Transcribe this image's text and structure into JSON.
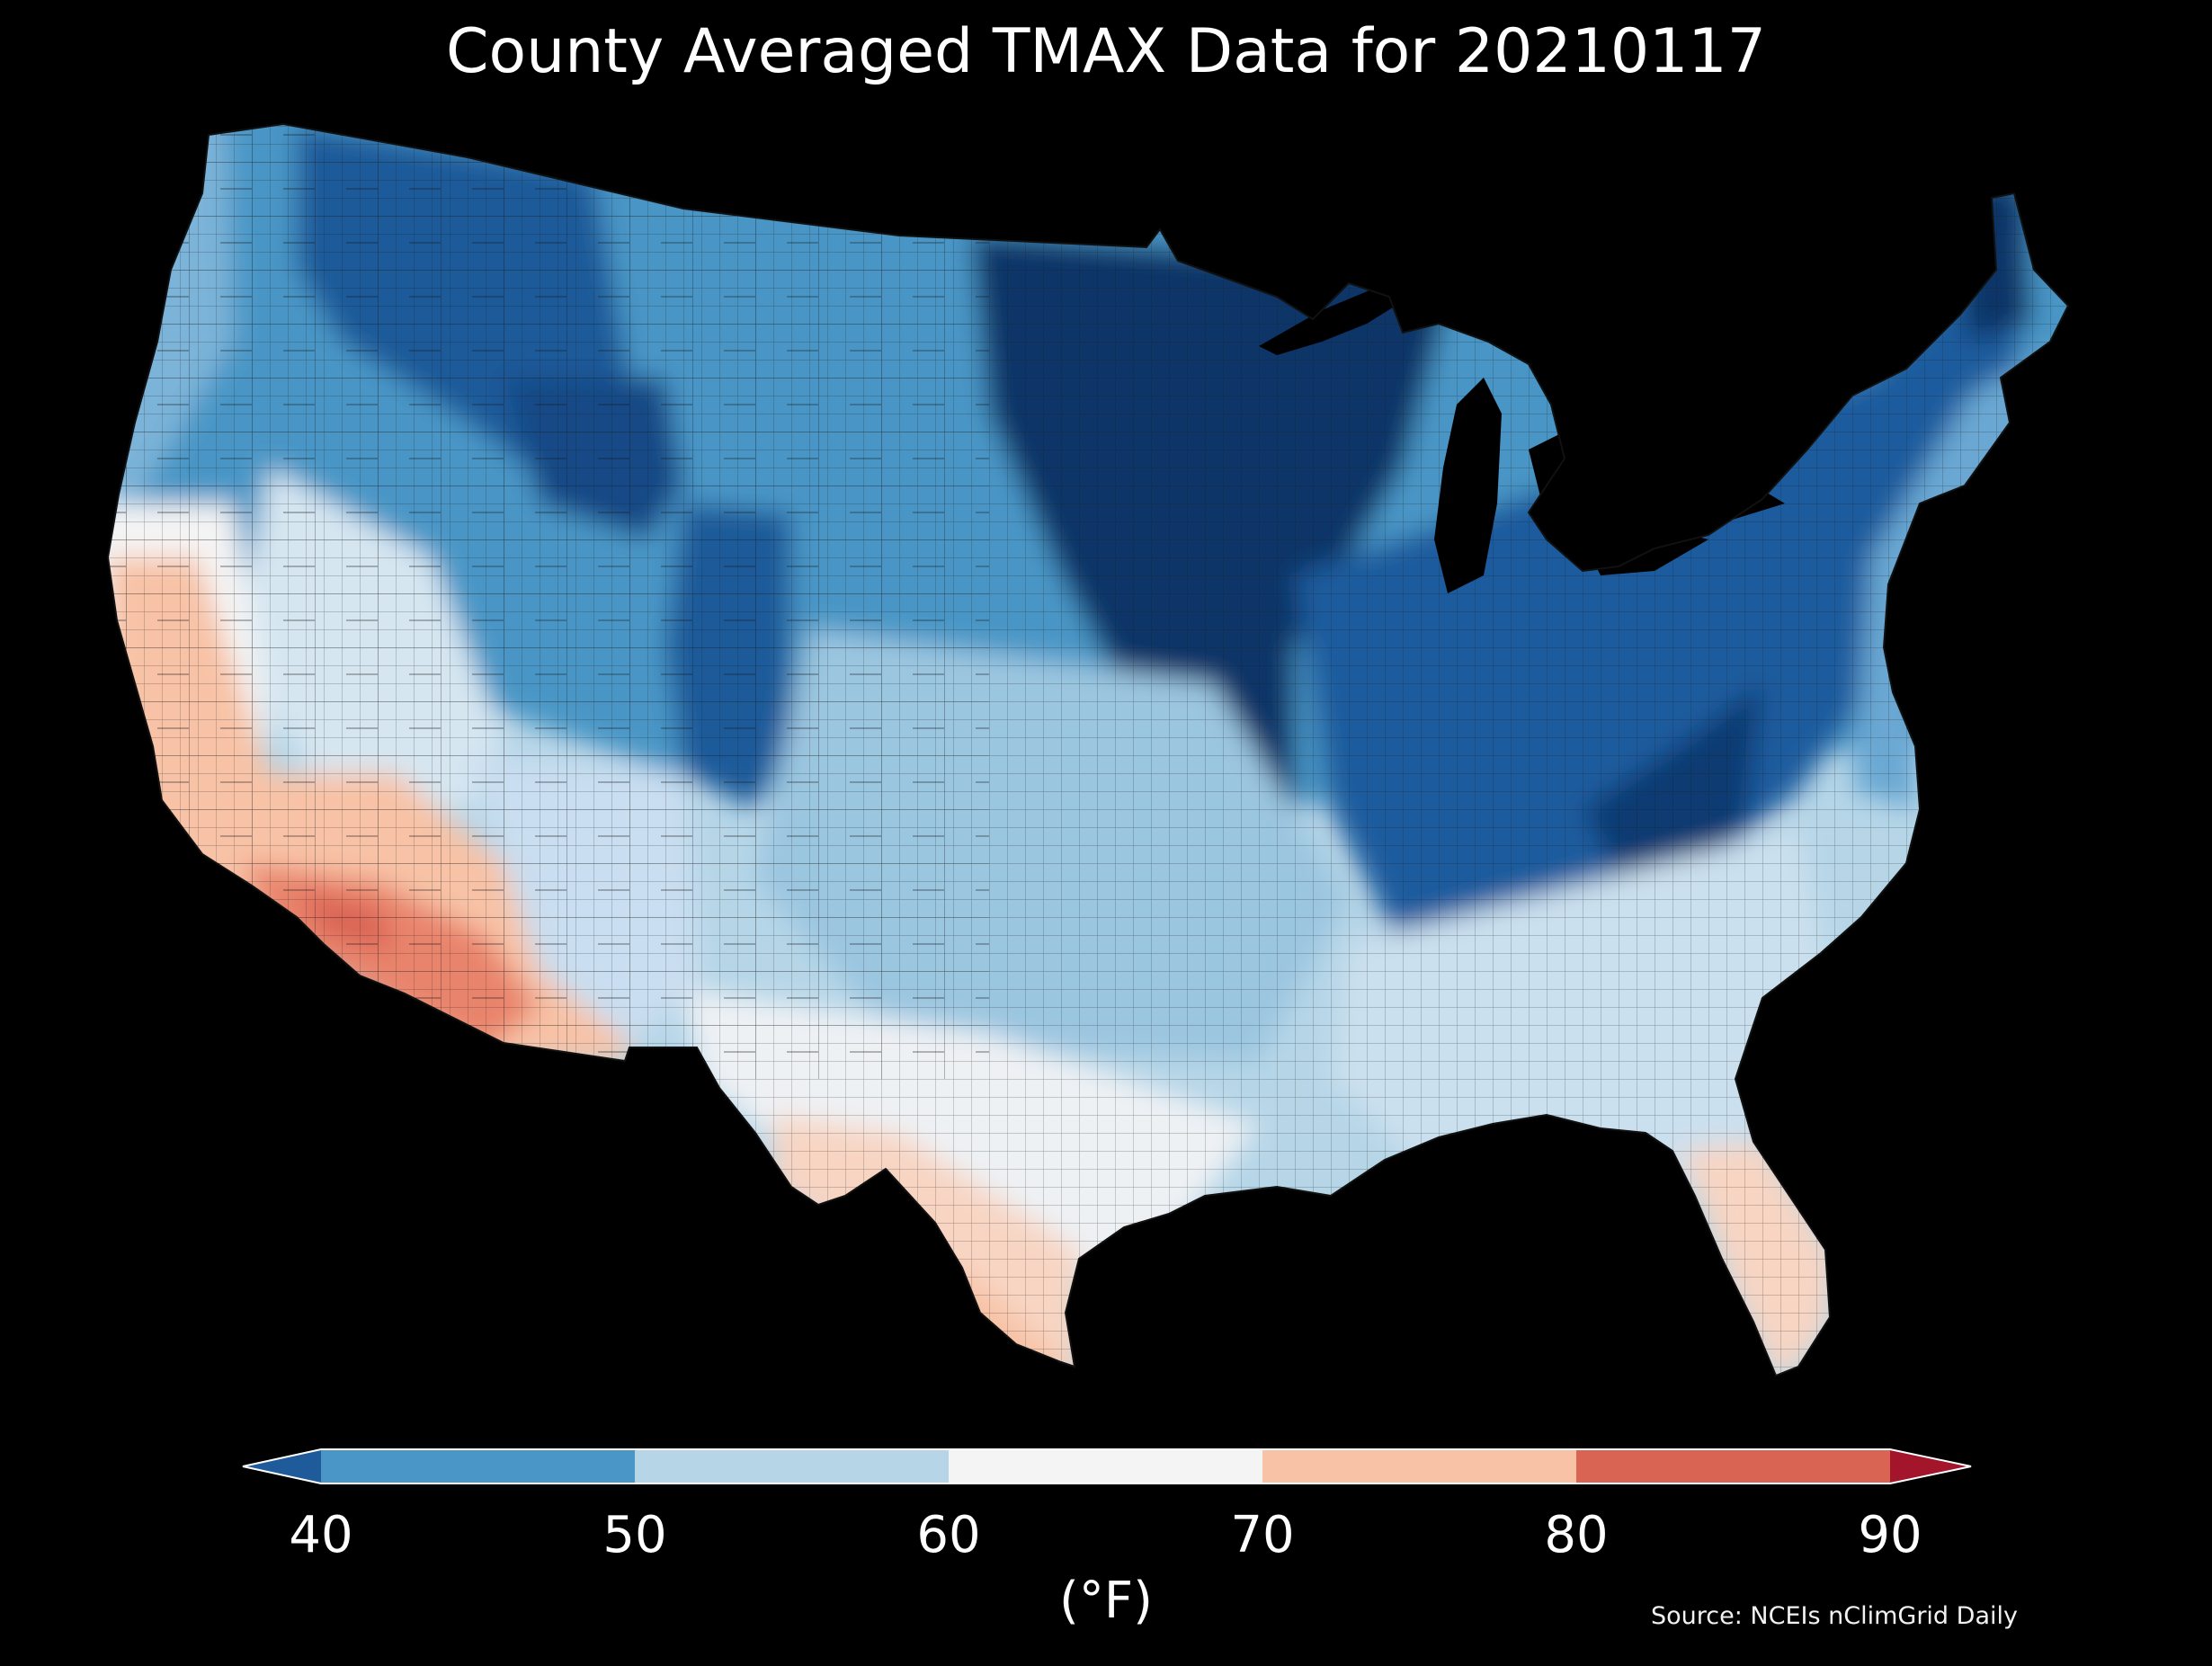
{
  "title": "County Averaged TMAX Data for 20210117",
  "colorbar": {
    "ticks": [
      "40",
      "50",
      "60",
      "70",
      "80",
      "90"
    ],
    "unit_label": "(°F)",
    "bins": [
      {
        "range": "<40",
        "color": "#1f5a9a"
      },
      {
        "range": "40-50",
        "color": "#4a96c6"
      },
      {
        "range": "50-60",
        "color": "#b6d6e8"
      },
      {
        "range": "60-70",
        "color": "#f4f4f4"
      },
      {
        "range": "70-80",
        "color": "#f8c2a6"
      },
      {
        "range": "80-90",
        "color": "#da6454"
      },
      {
        "range": ">90",
        "color": "#a3152b"
      }
    ]
  },
  "source": "Source: NCEIs nClimGrid Daily",
  "map_regions": [
    {
      "name": "pacific-northwest-interior",
      "bin": "40-50"
    },
    {
      "name": "northern-rockies-core",
      "bin": "<40"
    },
    {
      "name": "northern-plains",
      "bin": "40-50"
    },
    {
      "name": "upper-midwest",
      "bin": "<40"
    },
    {
      "name": "great-lakes-ohio-valley",
      "bin": "<40"
    },
    {
      "name": "appalachians",
      "bin": "<40"
    },
    {
      "name": "northeast",
      "bin": "<40"
    },
    {
      "name": "coastal-mid-atlantic",
      "bin": "50-60"
    },
    {
      "name": "central-plains",
      "bin": "50-60"
    },
    {
      "name": "great-basin",
      "bin": "50-60"
    },
    {
      "name": "southeast",
      "bin": "50-60"
    },
    {
      "name": "texas-gulf",
      "bin": "60-70"
    },
    {
      "name": "central-california",
      "bin": "60-70"
    },
    {
      "name": "southern-california-arizona",
      "bin": "70-80"
    },
    {
      "name": "low-desert",
      "bin": "80-90"
    },
    {
      "name": "south-texas",
      "bin": "70-80"
    },
    {
      "name": "south-florida",
      "bin": "70-80"
    }
  ]
}
